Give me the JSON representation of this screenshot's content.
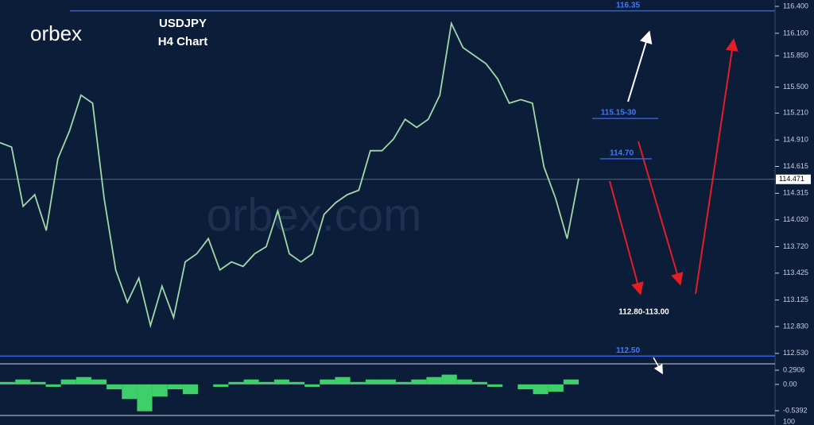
{
  "brand": "orbex",
  "watermark": "orbex.com",
  "chart_data": {
    "type": "line",
    "title": "USDJPY",
    "subtitle": "H4 Chart",
    "color": "#9fd8a8",
    "values": [
      114.88,
      114.83,
      114.17,
      114.3,
      113.9,
      114.7,
      115.01,
      115.41,
      115.32,
      114.26,
      113.46,
      113.1,
      113.37,
      112.84,
      113.28,
      112.93,
      113.55,
      113.64,
      113.81,
      113.46,
      113.55,
      113.5,
      113.64,
      113.72,
      114.12,
      113.64,
      113.55,
      113.64,
      114.08,
      114.21,
      114.3,
      114.35,
      114.79,
      114.79,
      114.92,
      115.14,
      115.05,
      115.14,
      115.41,
      116.21,
      115.94,
      115.85,
      115.76,
      115.59,
      115.32,
      115.36,
      115.32,
      114.61,
      114.26,
      113.81,
      114.48
    ],
    "ylim": [
      112.44,
      116.471
    ],
    "yticks": [
      {
        "value": 116.4,
        "label": "116.400"
      },
      {
        "value": 116.1,
        "label": "116.100"
      },
      {
        "value": 115.85,
        "label": "115.850"
      },
      {
        "value": 115.5,
        "label": "115.500"
      },
      {
        "value": 115.21,
        "label": "115.210"
      },
      {
        "value": 114.91,
        "label": "114.910"
      },
      114.615,
      114.315,
      {
        "value": 114.02,
        "label": "114.020"
      },
      {
        "value": 113.72,
        "label": "113.720"
      },
      113.425,
      113.125,
      {
        "value": 112.83,
        "label": "112.830"
      },
      {
        "value": 112.53,
        "label": "112.530"
      }
    ],
    "last": 114.471,
    "levels": [
      {
        "value": 116.35,
        "label": "116.35"
      },
      {
        "value": 115.15,
        "label": "115.15-30"
      },
      {
        "value": 114.7,
        "label": "114.70"
      },
      {
        "value": 112.5,
        "label": "112.50"
      }
    ],
    "annotation": "112.80-113.00",
    "oscillator": {
      "color": "#3fcf6a",
      "values": [
        0.05,
        0.1,
        0.05,
        -0.05,
        0.1,
        0.15,
        0.1,
        -0.1,
        -0.3,
        -0.55,
        -0.25,
        -0.1,
        -0.2,
        0.0,
        -0.05,
        0.05,
        0.1,
        0.05,
        0.1,
        0.05,
        -0.05,
        0.1,
        0.15,
        0.05,
        0.1,
        0.1,
        0.05,
        0.1,
        0.15,
        0.2,
        0.1,
        0.05,
        -0.05,
        0.0,
        -0.1,
        -0.2,
        -0.15,
        0.1
      ],
      "ylim": [
        -0.669,
        0.421
      ],
      "yticks": [
        0.2906,
        {
          "value": 0,
          "label": "0.00"
        },
        -0.5392
      ],
      "footer": "100"
    }
  }
}
